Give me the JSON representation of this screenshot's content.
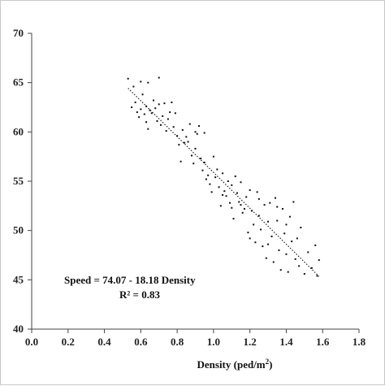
{
  "chart_data": {
    "type": "scatter",
    "title": "",
    "xlabel": "Density (ped/m",
    "xlabel_sup": "2",
    "xlabel_suffix": ")",
    "ylabel": "",
    "xlim": [
      0.0,
      1.8
    ],
    "ylim": [
      40,
      70
    ],
    "x_ticks": [
      0.0,
      0.2,
      0.4,
      0.6,
      0.8,
      1.0,
      1.2,
      1.4,
      1.6,
      1.8
    ],
    "x_tick_labels": [
      "0.0",
      "0.2",
      "0.4",
      "0.6",
      "0.8",
      "1.0",
      "1.2",
      "1.4",
      "1.6",
      "1.8"
    ],
    "y_ticks": [
      40,
      45,
      50,
      55,
      60,
      65,
      70
    ],
    "y_tick_labels": [
      "40",
      "45",
      "50",
      "55",
      "60",
      "65",
      "70"
    ],
    "grid": false,
    "equation": "Speed = 74.07 - 18.18 Density",
    "r_squared": "R² = 0.83",
    "trendline": {
      "intercept": 74.07,
      "slope": -18.18,
      "x_range": [
        0.53,
        1.58
      ],
      "style": "dotted"
    },
    "points": [
      [
        0.53,
        65.4
      ],
      [
        0.55,
        62.5
      ],
      [
        0.56,
        64.6
      ],
      [
        0.57,
        63.0
      ],
      [
        0.58,
        62.0
      ],
      [
        0.59,
        61.5
      ],
      [
        0.6,
        65.1
      ],
      [
        0.6,
        62.3
      ],
      [
        0.61,
        63.8
      ],
      [
        0.62,
        61.8
      ],
      [
        0.63,
        61.0
      ],
      [
        0.63,
        62.6
      ],
      [
        0.64,
        65.0
      ],
      [
        0.64,
        60.3
      ],
      [
        0.65,
        62.2
      ],
      [
        0.66,
        61.9
      ],
      [
        0.67,
        63.2
      ],
      [
        0.68,
        62.4
      ],
      [
        0.69,
        61.1
      ],
      [
        0.7,
        65.5
      ],
      [
        0.7,
        62.8
      ],
      [
        0.71,
        60.7
      ],
      [
        0.72,
        61.6
      ],
      [
        0.73,
        62.9
      ],
      [
        0.74,
        60.1
      ],
      [
        0.75,
        61.3
      ],
      [
        0.76,
        62.0
      ],
      [
        0.77,
        63.0
      ],
      [
        0.78,
        60.5
      ],
      [
        0.79,
        61.9
      ],
      [
        0.8,
        59.6
      ],
      [
        0.81,
        58.7
      ],
      [
        0.82,
        57.0
      ],
      [
        0.83,
        60.2
      ],
      [
        0.84,
        58.9
      ],
      [
        0.85,
        59.5
      ],
      [
        0.86,
        59.0
      ],
      [
        0.87,
        60.8
      ],
      [
        0.88,
        57.6
      ],
      [
        0.89,
        56.8
      ],
      [
        0.9,
        58.3
      ],
      [
        0.91,
        59.8
      ],
      [
        0.92,
        60.6
      ],
      [
        0.93,
        57.3
      ],
      [
        0.94,
        56.1
      ],
      [
        0.95,
        59.9
      ],
      [
        0.96,
        55.2
      ],
      [
        0.97,
        55.6
      ],
      [
        0.98,
        54.7
      ],
      [
        0.99,
        53.9
      ],
      [
        1.0,
        57.5
      ],
      [
        1.01,
        55.4
      ],
      [
        1.02,
        56.2
      ],
      [
        1.03,
        54.4
      ],
      [
        1.04,
        52.5
      ],
      [
        1.05,
        55.8
      ],
      [
        1.06,
        54.0
      ],
      [
        1.07,
        53.5
      ],
      [
        1.08,
        55.0
      ],
      [
        1.09,
        52.8
      ],
      [
        1.1,
        54.6
      ],
      [
        1.11,
        51.2
      ],
      [
        1.12,
        55.5
      ],
      [
        1.13,
        53.8
      ],
      [
        1.14,
        52.9
      ],
      [
        1.15,
        54.9
      ],
      [
        1.16,
        51.8
      ],
      [
        1.17,
        52.2
      ],
      [
        1.18,
        53.4
      ],
      [
        1.19,
        49.8
      ],
      [
        1.2,
        54.1
      ],
      [
        1.21,
        52.0
      ],
      [
        1.22,
        50.6
      ],
      [
        1.23,
        48.8
      ],
      [
        1.24,
        53.9
      ],
      [
        1.25,
        51.5
      ],
      [
        1.26,
        50.1
      ],
      [
        1.27,
        48.4
      ],
      [
        1.28,
        52.6
      ],
      [
        1.29,
        47.2
      ],
      [
        1.3,
        50.9
      ],
      [
        1.31,
        52.8
      ],
      [
        1.32,
        49.4
      ],
      [
        1.33,
        46.8
      ],
      [
        1.34,
        53.3
      ],
      [
        1.35,
        51.0
      ],
      [
        1.36,
        48.0
      ],
      [
        1.37,
        46.0
      ],
      [
        1.38,
        52.2
      ],
      [
        1.39,
        49.7
      ],
      [
        1.4,
        47.6
      ],
      [
        1.41,
        45.8
      ],
      [
        1.42,
        51.4
      ],
      [
        1.43,
        48.9
      ],
      [
        1.44,
        52.9
      ],
      [
        1.45,
        47.1
      ],
      [
        1.46,
        49.2
      ],
      [
        1.47,
        46.4
      ],
      [
        1.48,
        50.3
      ],
      [
        1.5,
        45.6
      ],
      [
        1.52,
        47.8
      ],
      [
        1.54,
        46.2
      ],
      [
        1.56,
        48.5
      ],
      [
        1.57,
        45.4
      ],
      [
        1.58,
        47.0
      ],
      [
        1.2,
        49.2
      ],
      [
        1.25,
        53.2
      ],
      [
        1.3,
        48.6
      ],
      [
        1.35,
        52.4
      ],
      [
        1.4,
        50.6
      ],
      [
        1.15,
        52.6
      ],
      [
        1.1,
        52.3
      ],
      [
        1.05,
        53.6
      ],
      [
        0.95,
        56.9
      ],
      [
        0.9,
        60.0
      ]
    ]
  }
}
